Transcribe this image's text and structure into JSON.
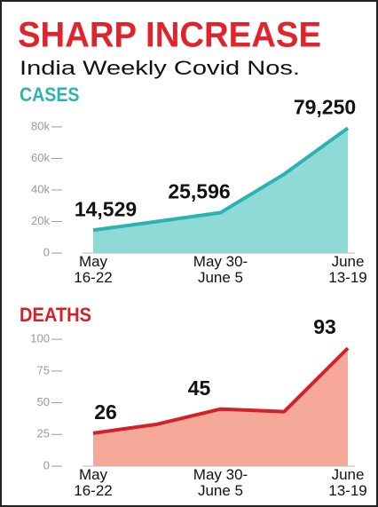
{
  "title": "SHARP INCREASE",
  "subtitle": "India Weekly Covid Nos.",
  "chart_data": [
    {
      "type": "area",
      "title": "CASES",
      "categories": [
        "May\n16-22",
        null,
        "May 30-\nJune 5",
        null,
        "June\n13-19"
      ],
      "values": [
        14529,
        20000,
        25596,
        50000,
        79250
      ],
      "value_labels": [
        "14,529",
        null,
        "25,596",
        null,
        "79,250"
      ],
      "color": "#2bb3b1",
      "fill": "#8fd9d6",
      "ylim": [
        0,
        85000
      ],
      "yticks": [
        0,
        {
          "value": 20000,
          "label": "20k"
        },
        {
          "value": 40000,
          "label": "40k"
        },
        {
          "value": 60000,
          "label": "60k"
        },
        {
          "value": 80000,
          "label": "80k"
        }
      ]
    },
    {
      "type": "area",
      "title": "DEATHS",
      "categories": [
        "May\n16-22",
        null,
        "May 30-\nJune 5",
        null,
        "June\n13-19"
      ],
      "values": [
        26,
        33,
        45,
        43,
        93
      ],
      "color": "#d42027",
      "fill": "#f4a898",
      "ylim": [
        0,
        105
      ],
      "yticks": [
        0,
        25,
        50,
        75,
        100
      ]
    }
  ]
}
